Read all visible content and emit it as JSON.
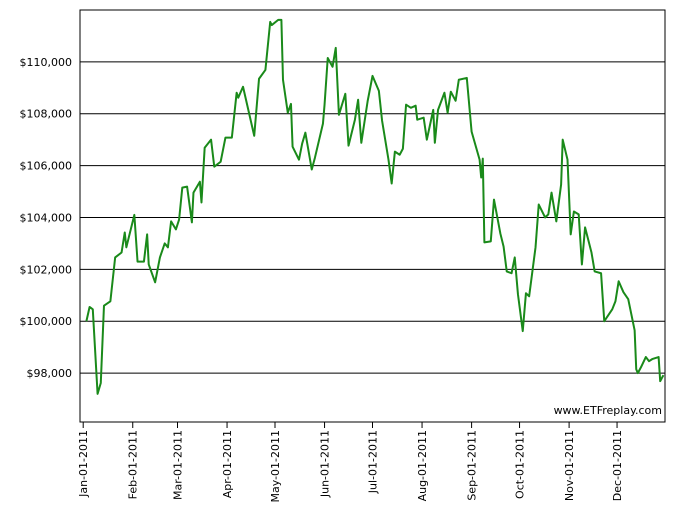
{
  "chart_data": {
    "type": "line",
    "annotation": "www.ETFreplay.com",
    "x": [
      "2011-01-03",
      "2011-01-05",
      "2011-01-07",
      "2011-01-10",
      "2011-01-12",
      "2011-01-14",
      "2011-01-18",
      "2011-01-21",
      "2011-01-25",
      "2011-01-27",
      "2011-01-28",
      "2011-02-02",
      "2011-02-04",
      "2011-02-08",
      "2011-02-10",
      "2011-02-11",
      "2011-02-15",
      "2011-02-18",
      "2011-02-21",
      "2011-02-23",
      "2011-02-25",
      "2011-02-28",
      "2011-03-02",
      "2011-03-04",
      "2011-03-07",
      "2011-03-10",
      "2011-03-11",
      "2011-03-15",
      "2011-03-16",
      "2011-03-18",
      "2011-03-22",
      "2011-03-24",
      "2011-03-28",
      "2011-03-31",
      "2011-04-04",
      "2011-04-07",
      "2011-04-08",
      "2011-04-11",
      "2011-04-14",
      "2011-04-18",
      "2011-04-21",
      "2011-04-25",
      "2011-04-28",
      "2011-04-29",
      "2011-05-03",
      "2011-05-05",
      "2011-05-06",
      "2011-05-09",
      "2011-05-11",
      "2011-05-12",
      "2011-05-16",
      "2011-05-18",
      "2011-05-20",
      "2011-05-24",
      "2011-05-26",
      "2011-05-31",
      "2011-06-01",
      "2011-06-03",
      "2011-06-06",
      "2011-06-08",
      "2011-06-10",
      "2011-06-14",
      "2011-06-16",
      "2011-06-20",
      "2011-06-22",
      "2011-06-24",
      "2011-06-28",
      "2011-07-01",
      "2011-07-05",
      "2011-07-07",
      "2011-07-11",
      "2011-07-13",
      "2011-07-15",
      "2011-07-18",
      "2011-07-20",
      "2011-07-22",
      "2011-07-25",
      "2011-07-28",
      "2011-07-29",
      "2011-08-02",
      "2011-08-04",
      "2011-08-08",
      "2011-08-09",
      "2011-08-11",
      "2011-08-15",
      "2011-08-17",
      "2011-08-19",
      "2011-08-22",
      "2011-08-24",
      "2011-08-29",
      "2011-09-01",
      "2011-09-06",
      "2011-09-07",
      "2011-09-08",
      "2011-09-09",
      "2011-09-13",
      "2011-09-15",
      "2011-09-19",
      "2011-09-21",
      "2011-09-23",
      "2011-09-26",
      "2011-09-28",
      "2011-09-30",
      "2011-10-03",
      "2011-10-05",
      "2011-10-07",
      "2011-10-11",
      "2011-10-13",
      "2011-10-17",
      "2011-10-19",
      "2011-10-21",
      "2011-10-24",
      "2011-10-27",
      "2011-10-28",
      "2011-10-31",
      "2011-11-02",
      "2011-11-04",
      "2011-11-07",
      "2011-11-09",
      "2011-11-11",
      "2011-11-15",
      "2011-11-17",
      "2011-11-21",
      "2011-11-23",
      "2011-11-28",
      "2011-11-30",
      "2011-12-02",
      "2011-12-05",
      "2011-12-08",
      "2011-12-12",
      "2011-12-13",
      "2011-12-14",
      "2011-12-16",
      "2011-12-19",
      "2011-12-21",
      "2011-12-23",
      "2011-12-27",
      "2011-12-28",
      "2011-12-30"
    ],
    "series": [
      {
        "color": "#1a8a1a",
        "values": [
          100000,
          100550,
          100460,
          97200,
          97620,
          100600,
          100770,
          102460,
          102650,
          103420,
          102850,
          104100,
          102300,
          102300,
          103350,
          102190,
          101500,
          102460,
          103000,
          102850,
          103850,
          103540,
          103920,
          105150,
          105190,
          103810,
          104960,
          105380,
          104580,
          106690,
          107000,
          105960,
          106150,
          107080,
          107080,
          108810,
          108620,
          109040,
          108230,
          107150,
          109350,
          109690,
          111540,
          111420,
          111620,
          111620,
          109310,
          108040,
          108380,
          106730,
          106230,
          106850,
          107270,
          105850,
          106310,
          107620,
          108350,
          110150,
          109810,
          110540,
          107960,
          108770,
          106770,
          107770,
          108540,
          106880,
          108500,
          109460,
          108880,
          107730,
          106230,
          105310,
          106540,
          106420,
          106650,
          108350,
          108230,
          108310,
          107770,
          107850,
          107000,
          108150,
          106880,
          108150,
          108810,
          108040,
          108850,
          108500,
          109310,
          109380,
          107310,
          106230,
          105540,
          106270,
          103040,
          103080,
          104690,
          103380,
          102880,
          101920,
          101850,
          102460,
          101040,
          99620,
          101080,
          100960,
          102850,
          104500,
          104000,
          104120,
          104960,
          103850,
          105270,
          107000,
          106230,
          103350,
          104230,
          104120,
          102190,
          103620,
          102650,
          101920,
          101850,
          100000,
          100460,
          100770,
          101540,
          101120,
          100850,
          99650,
          98150,
          98000,
          98230,
          98620,
          98460,
          98540,
          98620,
          97690,
          97920
        ]
      }
    ],
    "xlim": [
      "2010-12-30",
      "2011-12-31"
    ],
    "xticks": [
      {
        "value": "2011-01-01",
        "label": "Jan-01-2011"
      },
      {
        "value": "2011-02-01",
        "label": "Feb-01-2011"
      },
      {
        "value": "2011-03-01",
        "label": "Mar-01-2011"
      },
      {
        "value": "2011-04-01",
        "label": "Apr-01-2011"
      },
      {
        "value": "2011-05-01",
        "label": "May-01-2011"
      },
      {
        "value": "2011-06-01",
        "label": "Jun-01-2011"
      },
      {
        "value": "2011-07-01",
        "label": "Jul-01-2011"
      },
      {
        "value": "2011-08-01",
        "label": "Aug-01-2011"
      },
      {
        "value": "2011-09-01",
        "label": "Sep-01-2011"
      },
      {
        "value": "2011-10-01",
        "label": "Oct-01-2011"
      },
      {
        "value": "2011-11-01",
        "label": "Nov-01-2011"
      },
      {
        "value": "2011-12-01",
        "label": "Dec-01-2011"
      }
    ],
    "ylim": [
      96115,
      112000
    ],
    "yticks": [
      {
        "value": 98000,
        "label": "$98,000"
      },
      {
        "value": 100000,
        "label": "$100,000"
      },
      {
        "value": 102000,
        "label": "$102,000"
      },
      {
        "value": 104000,
        "label": "$104,000"
      },
      {
        "value": 106000,
        "label": "$106,000"
      },
      {
        "value": 108000,
        "label": "$108,000"
      },
      {
        "value": 110000,
        "label": "$110,000"
      }
    ],
    "grid": true
  }
}
